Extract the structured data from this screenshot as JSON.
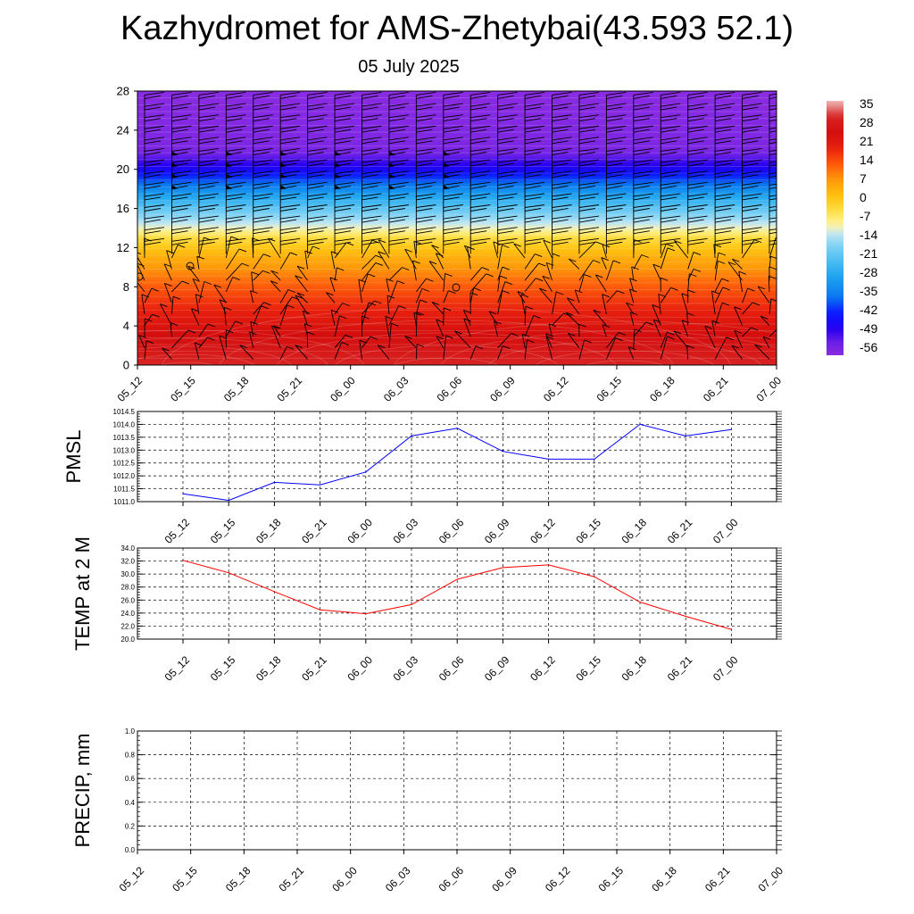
{
  "header": {
    "title": "Kazhydromet for AMS-Zhetybai(43.593 52.1)",
    "subtitle": "05 July 2025"
  },
  "chart_data": [
    {
      "id": "cross-section",
      "type": "heatmap",
      "title": "",
      "xlabel": "",
      "ylabel": "",
      "x_ticks": [
        "05_12",
        "05_15",
        "05_18",
        "05_21",
        "06_00",
        "06_03",
        "06_06",
        "06_09",
        "06_12",
        "06_15",
        "06_18",
        "06_21",
        "07_00"
      ],
      "y_ticks": [
        0,
        4,
        8,
        12,
        16,
        20,
        24,
        28
      ],
      "ylim": [
        0,
        28
      ],
      "colorbar": {
        "labels": [
          35,
          28,
          21,
          14,
          7,
          0,
          -7,
          -14,
          -21,
          -28,
          -35,
          -42,
          -49,
          -56
        ],
        "range": [
          -60,
          36
        ]
      },
      "temperature_profile": [
        {
          "level": 0,
          "value": 30
        },
        {
          "level": 4,
          "value": 22
        },
        {
          "level": 8,
          "value": 12
        },
        {
          "level": 11,
          "value": 3
        },
        {
          "level": 13,
          "value": -5
        },
        {
          "level": 14,
          "value": -12
        },
        {
          "level": 16,
          "value": -22
        },
        {
          "level": 18,
          "value": -35
        },
        {
          "level": 20,
          "value": -48
        },
        {
          "level": 22,
          "value": -58
        },
        {
          "level": 28,
          "value": -60
        }
      ],
      "wind_barbs": true
    },
    {
      "id": "pmsl",
      "type": "line",
      "ylabel": "PMSL",
      "ylim": [
        1011.0,
        1014.5
      ],
      "y_ticks": [
        "1011.0",
        "1011.5",
        "1012.0",
        "1012.5",
        "1013.0",
        "1013.5",
        "1014.0",
        "1014.5"
      ],
      "categories": [
        "05_12",
        "05_15",
        "05_18",
        "05_21",
        "06_00",
        "06_03",
        "06_06",
        "06_09",
        "06_12",
        "06_15",
        "06_18",
        "06_21",
        "07_00"
      ],
      "series": [
        {
          "values": [
            1011.3,
            1011.05,
            1011.75,
            1011.65,
            1012.15,
            1013.55,
            1013.85,
            1012.95,
            1012.65,
            1012.65,
            1014.0,
            1013.55,
            1013.8
          ],
          "color": "#0000ff"
        }
      ]
    },
    {
      "id": "temp2m",
      "type": "line",
      "ylabel": "TEMP at 2 M",
      "ylim": [
        20.0,
        34.0
      ],
      "y_ticks": [
        "20.0",
        "22.0",
        "24.0",
        "26.0",
        "28.0",
        "30.0",
        "32.0",
        "34.0"
      ],
      "categories": [
        "05_12",
        "05_15",
        "05_18",
        "05_21",
        "06_00",
        "06_03",
        "06_06",
        "06_09",
        "06_12",
        "06_15",
        "06_18",
        "06_21",
        "07_00"
      ],
      "series": [
        {
          "values": [
            32.1,
            30.2,
            27.3,
            24.5,
            23.9,
            25.3,
            29.2,
            31.0,
            31.4,
            29.6,
            25.7,
            23.5,
            21.5
          ],
          "color": "#ff0000"
        }
      ]
    },
    {
      "id": "precip",
      "type": "line",
      "ylabel": "PRECIP, mm",
      "ylim": [
        0.0,
        1.0
      ],
      "y_ticks": [
        "0.0",
        "0.2",
        "0.4",
        "0.6",
        "0.8",
        "1.0"
      ],
      "categories": [
        "05_12",
        "05_15",
        "05_18",
        "05_21",
        "06_00",
        "06_03",
        "06_06",
        "06_09",
        "06_12",
        "06_15",
        "06_18",
        "06_21",
        "07_00"
      ],
      "series": [
        {
          "values": [
            0,
            0,
            0,
            0,
            0,
            0,
            0,
            0,
            0,
            0,
            0,
            0,
            0
          ],
          "color": "#006400"
        }
      ]
    }
  ]
}
